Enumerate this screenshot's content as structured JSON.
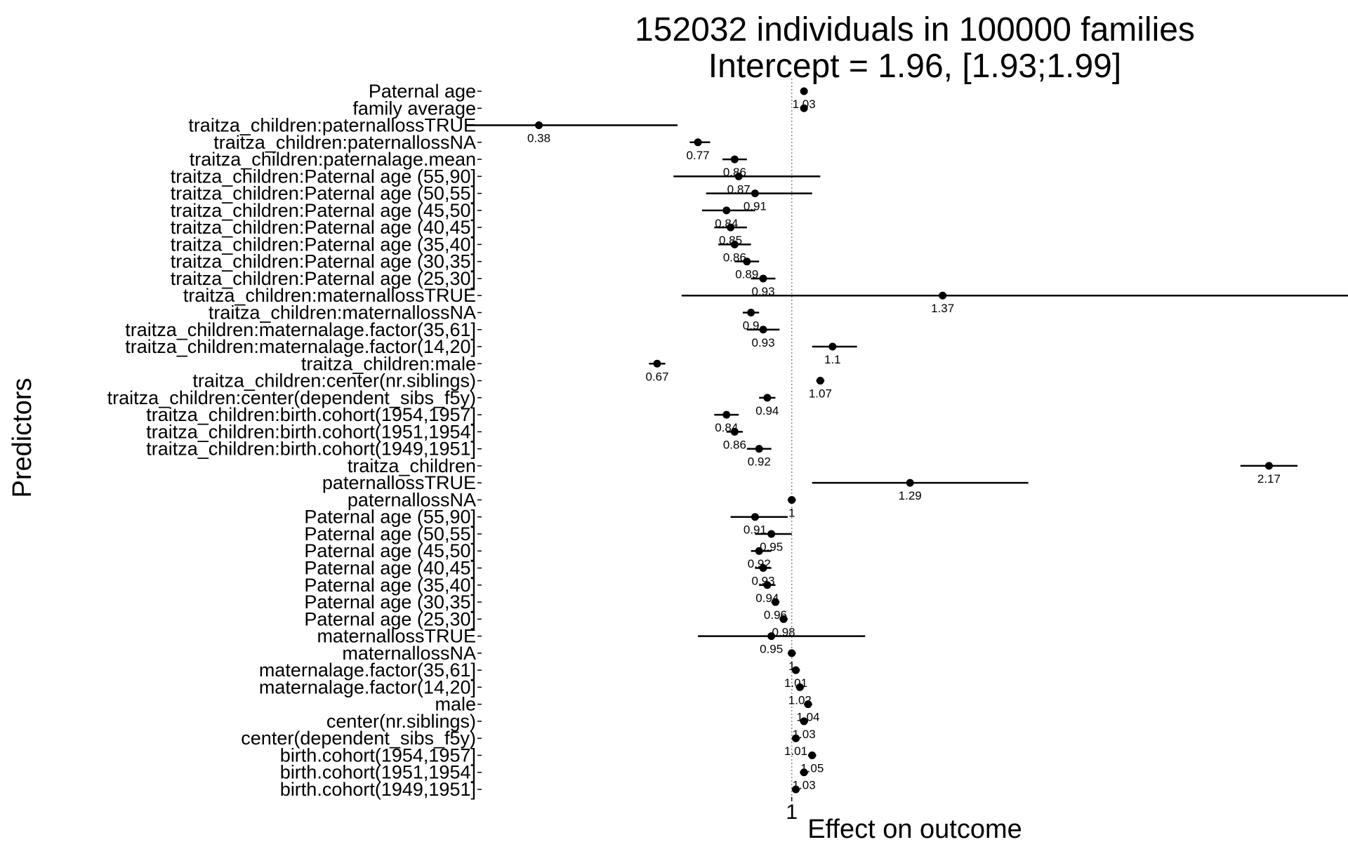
{
  "chart_data": {
    "type": "scatter",
    "title": "152032 individuals in 100000 families",
    "subtitle": "Intercept = 1.96, [1.93;1.99]",
    "xlabel": "Effect on outcome",
    "ylabel": "Predictors",
    "x_ticks": [
      "1"
    ],
    "reference_line": 1,
    "grid": false,
    "legend": "none",
    "colors": {
      "points": "#000000",
      "reference_line": "#888888",
      "background": "#ffffff"
    },
    "predictors": [
      {
        "name": "Paternal age",
        "value": 1.03,
        "ci": [
          1.03,
          1.03
        ],
        "label": "1.03"
      },
      {
        "name": "family average",
        "value": 1.03,
        "ci": [
          1.03,
          1.03
        ],
        "label": ""
      },
      {
        "name": "traitza_children:paternallossTRUE",
        "value": 0.38,
        "ci": [
          0.2,
          0.72
        ],
        "label": "0.38"
      },
      {
        "name": "traitza_children:paternallossNA",
        "value": 0.77,
        "ci": [
          0.75,
          0.8
        ],
        "label": "0.77"
      },
      {
        "name": "traitza_children:paternalage.mean",
        "value": 0.86,
        "ci": [
          0.83,
          0.89
        ],
        "label": "0.86"
      },
      {
        "name": "traitza_children:Paternal age (55,90]",
        "value": 0.87,
        "ci": [
          0.71,
          1.07
        ],
        "label": "0.87"
      },
      {
        "name": "traitza_children:Paternal age (50,55]",
        "value": 0.91,
        "ci": [
          0.79,
          1.05
        ],
        "label": "0.91"
      },
      {
        "name": "traitza_children:Paternal age (45,50]",
        "value": 0.84,
        "ci": [
          0.78,
          0.91
        ],
        "label": "0.84"
      },
      {
        "name": "traitza_children:Paternal age (40,45]",
        "value": 0.85,
        "ci": [
          0.81,
          0.89
        ],
        "label": "0.85"
      },
      {
        "name": "traitza_children:Paternal age (35,40]",
        "value": 0.86,
        "ci": [
          0.82,
          0.9
        ],
        "label": "0.86"
      },
      {
        "name": "traitza_children:Paternal age (30,35]",
        "value": 0.89,
        "ci": [
          0.86,
          0.92
        ],
        "label": "0.89"
      },
      {
        "name": "traitza_children:Paternal age (25,30]",
        "value": 0.93,
        "ci": [
          0.9,
          0.96
        ],
        "label": "0.93"
      },
      {
        "name": "traitza_children:maternallossTRUE",
        "value": 1.37,
        "ci": [
          0.73,
          2.58
        ],
        "label": "1.37"
      },
      {
        "name": "traitza_children:maternallossNA",
        "value": 0.9,
        "ci": [
          0.88,
          0.92
        ],
        "label": "0.9"
      },
      {
        "name": "traitza_children:maternalage.factor(35,61]",
        "value": 0.93,
        "ci": [
          0.89,
          0.97
        ],
        "label": "0.93"
      },
      {
        "name": "traitza_children:maternalage.factor(14,20]",
        "value": 1.1,
        "ci": [
          1.05,
          1.16
        ],
        "label": "1.1"
      },
      {
        "name": "traitza_children:male",
        "value": 0.67,
        "ci": [
          0.65,
          0.69
        ],
        "label": "0.67"
      },
      {
        "name": "traitza_children:center(nr.siblings)",
        "value": 1.07,
        "ci": [
          1.06,
          1.08
        ],
        "label": "1.07"
      },
      {
        "name": "traitza_children:center(dependent_sibs_f5y)",
        "value": 0.94,
        "ci": [
          0.92,
          0.96
        ],
        "label": "0.94"
      },
      {
        "name": "traitza_children:birth.cohort(1954,1957]",
        "value": 0.84,
        "ci": [
          0.81,
          0.87
        ],
        "label": "0.84"
      },
      {
        "name": "traitza_children:birth.cohort(1951,1954]",
        "value": 0.86,
        "ci": [
          0.84,
          0.88
        ],
        "label": "0.86"
      },
      {
        "name": "traitza_children:birth.cohort(1949,1951]",
        "value": 0.92,
        "ci": [
          0.89,
          0.95
        ],
        "label": "0.92"
      },
      {
        "name": "traitza_children",
        "value": 2.17,
        "ci": [
          2.1,
          2.24
        ],
        "label": "2.17"
      },
      {
        "name": "paternallossTRUE",
        "value": 1.29,
        "ci": [
          1.05,
          1.58
        ],
        "label": "1.29"
      },
      {
        "name": "paternallossNA",
        "value": 1.0,
        "ci": [
          0.99,
          1.01
        ],
        "label": "1"
      },
      {
        "name": "Paternal age (55,90]",
        "value": 0.91,
        "ci": [
          0.85,
          0.99
        ],
        "label": "0.91"
      },
      {
        "name": "Paternal age (50,55]",
        "value": 0.95,
        "ci": [
          0.91,
          1.0
        ],
        "label": "0.95"
      },
      {
        "name": "Paternal age (45,50]",
        "value": 0.92,
        "ci": [
          0.9,
          0.95
        ],
        "label": "0.92"
      },
      {
        "name": "Paternal age (40,45]",
        "value": 0.93,
        "ci": [
          0.91,
          0.95
        ],
        "label": "0.93"
      },
      {
        "name": "Paternal age (35,40]",
        "value": 0.94,
        "ci": [
          0.92,
          0.96
        ],
        "label": "0.94"
      },
      {
        "name": "Paternal age (30,35]",
        "value": 0.96,
        "ci": [
          0.95,
          0.97
        ],
        "label": "0.96"
      },
      {
        "name": "Paternal age (25,30]",
        "value": 0.98,
        "ci": [
          0.97,
          0.99
        ],
        "label": "0.98"
      },
      {
        "name": "maternallossTRUE",
        "value": 0.95,
        "ci": [
          0.77,
          1.18
        ],
        "label": "0.95"
      },
      {
        "name": "maternallossNA",
        "value": 1.0,
        "ci": [
          0.99,
          1.01
        ],
        "label": "1"
      },
      {
        "name": "maternalage.factor(35,61]",
        "value": 1.01,
        "ci": [
          1.0,
          1.02
        ],
        "label": "1.01"
      },
      {
        "name": "maternalage.factor(14,20]",
        "value": 1.02,
        "ci": [
          1.01,
          1.03
        ],
        "label": "1.02"
      },
      {
        "name": "male",
        "value": 1.04,
        "ci": [
          1.03,
          1.05
        ],
        "label": "1.04"
      },
      {
        "name": "center(nr.siblings)",
        "value": 1.03,
        "ci": [
          1.02,
          1.04
        ],
        "label": "1.03"
      },
      {
        "name": "center(dependent_sibs_f5y)",
        "value": 1.01,
        "ci": [
          1.0,
          1.02
        ],
        "label": "1.01"
      },
      {
        "name": "birth.cohort(1954,1957]",
        "value": 1.05,
        "ci": [
          1.04,
          1.06
        ],
        "label": "1.05"
      },
      {
        "name": "birth.cohort(1951,1954]",
        "value": 1.03,
        "ci": [
          1.02,
          1.04
        ],
        "label": "1.03"
      },
      {
        "name": "birth.cohort(1949,1951]",
        "value": 1.01,
        "ci": [
          1.0,
          1.02
        ],
        "label": ""
      }
    ]
  }
}
